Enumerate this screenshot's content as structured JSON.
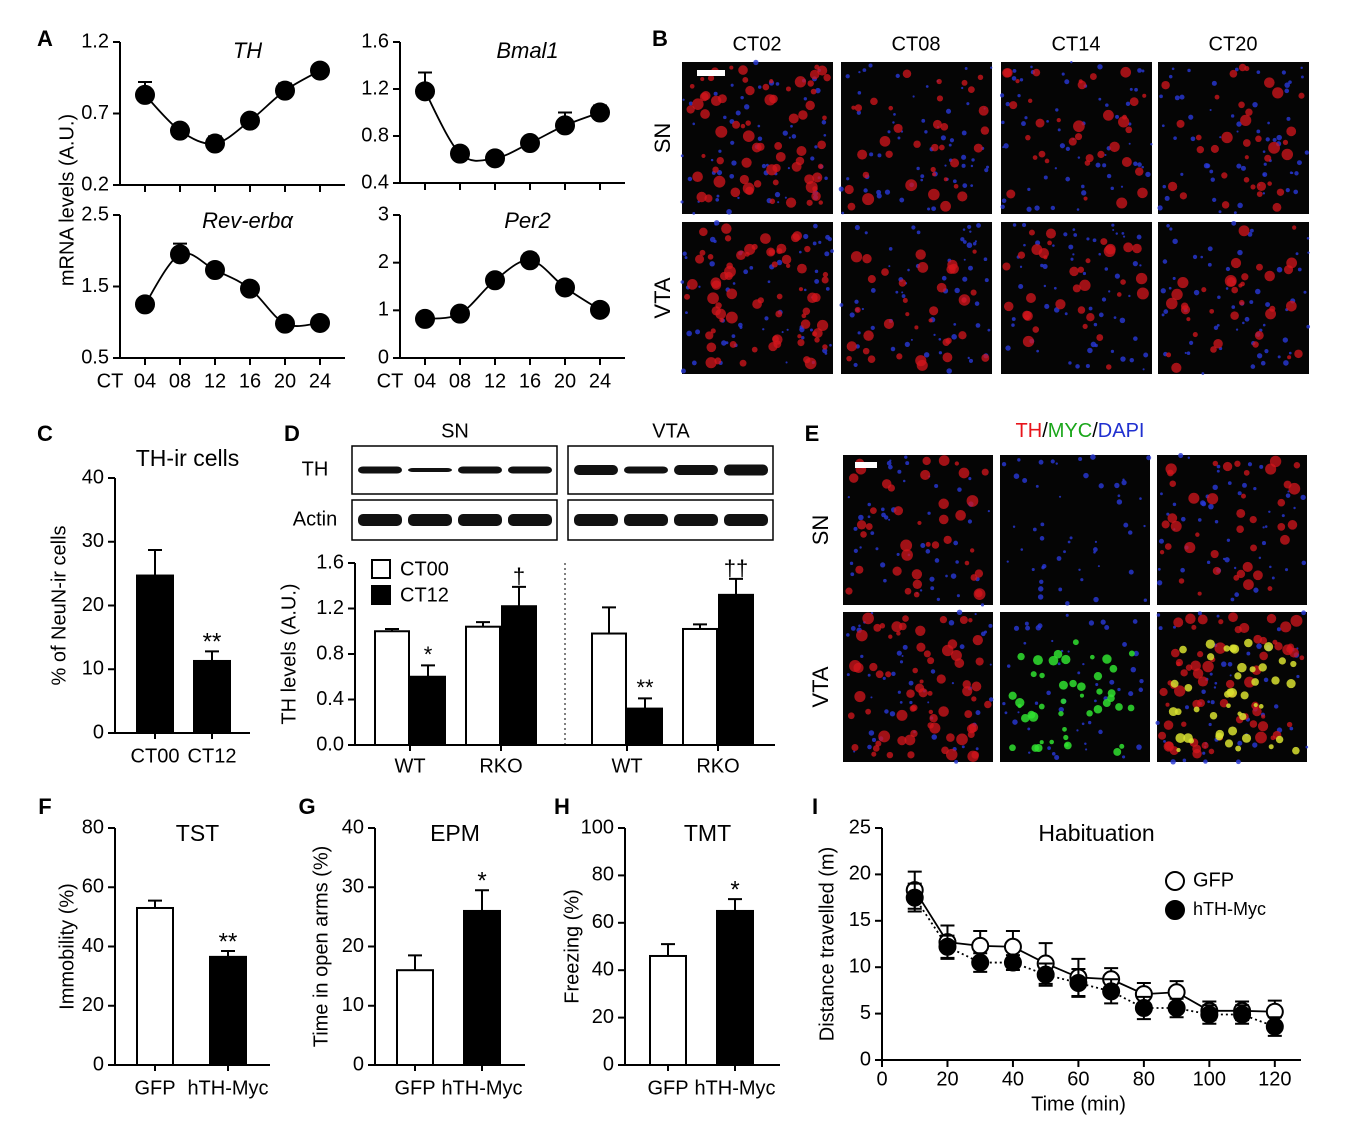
{
  "panel_labels": [
    "A",
    "B",
    "C",
    "D",
    "E",
    "F",
    "G",
    "H",
    "I"
  ],
  "panel_a": {
    "ylabel": "mRNA levels (A.U.)"
  },
  "micrographs_b": {
    "columns": [
      "CT02",
      "CT08",
      "CT14",
      "CT20"
    ],
    "rows": [
      "SN",
      "VTA"
    ]
  },
  "micrographs_e": {
    "channels": [
      {
        "name": "TH",
        "color": "#e8141b"
      },
      {
        "name": "MYC",
        "color": "#1aa61a"
      },
      {
        "name": "DAPI",
        "color": "#2030d0"
      }
    ],
    "separator": "/",
    "rows": [
      "SN",
      "VTA"
    ]
  },
  "western_d": {
    "groups": [
      "SN",
      "VTA"
    ],
    "rows": [
      "TH",
      "Actin"
    ]
  },
  "chart_data": [
    {
      "type": "line",
      "title": "TH",
      "ylim": [
        0.2,
        1.2
      ],
      "yticks": [
        0.2,
        0.7,
        1.2
      ],
      "series": [
        {
          "color": "#000",
          "values": [
            0.83,
            0.58,
            0.49,
            0.65,
            0.86,
            1.0
          ],
          "errors": [
            0.09,
            0.03,
            0.05,
            0.04,
            0.05,
            0.04
          ]
        }
      ]
    },
    {
      "type": "line",
      "title": "Bmal1",
      "ylim": [
        0.4,
        1.6
      ],
      "yticks": [
        0.4,
        0.8,
        1.2,
        1.6
      ],
      "series": [
        {
          "color": "#000",
          "values": [
            1.18,
            0.65,
            0.61,
            0.74,
            0.89,
            1.0
          ],
          "errors": [
            0.16,
            0.03,
            0.03,
            0.05,
            0.11,
            0.06
          ]
        }
      ]
    },
    {
      "type": "line",
      "title": "Rev-erbα",
      "xlabel": "CT",
      "categories": [
        "04",
        "08",
        "12",
        "16",
        "20",
        "24"
      ],
      "ylim": [
        0.5,
        2.5
      ],
      "yticks": [
        0.5,
        1.5,
        2.5
      ],
      "series": [
        {
          "color": "#000",
          "values": [
            1.25,
            1.95,
            1.73,
            1.47,
            0.98,
            0.99
          ],
          "errors": [
            0.05,
            0.15,
            0.09,
            0.05,
            0.04,
            0.04
          ]
        }
      ]
    },
    {
      "type": "line",
      "title": "Per2",
      "xlabel": "CT",
      "categories": [
        "04",
        "08",
        "12",
        "16",
        "20",
        "24"
      ],
      "ylim": [
        0,
        3
      ],
      "yticks": [
        0,
        1,
        2,
        3
      ],
      "series": [
        {
          "color": "#000",
          "values": [
            0.82,
            0.93,
            1.63,
            2.05,
            1.48,
            1.01
          ],
          "errors": [
            0.05,
            0.05,
            0.08,
            0.14,
            0.06,
            0.05
          ]
        }
      ]
    },
    {
      "type": "bar",
      "title": "TH-ir cells",
      "ylabel": "% of NeuN-ir cells",
      "categories": [
        "CT00",
        "CT12"
      ],
      "values": [
        24.7,
        11.3
      ],
      "errors": [
        4.0,
        1.5
      ],
      "colors": [
        "#000",
        "#000"
      ],
      "significance": [
        null,
        "**"
      ],
      "ylim": [
        0,
        40
      ],
      "yticks": [
        0,
        10,
        20,
        30,
        40
      ]
    },
    {
      "type": "grouped_bar",
      "ylabel": "TH levels (A.U.)",
      "categories": [
        "WT",
        "RKO",
        "WT",
        "RKO"
      ],
      "series": [
        {
          "name": "CT00",
          "color": "#fff",
          "values": [
            1.0,
            1.04,
            0.98,
            1.02
          ],
          "errors": [
            0.02,
            0.04,
            0.23,
            0.04
          ]
        },
        {
          "name": "CT12",
          "color": "#000",
          "values": [
            0.6,
            1.22,
            0.32,
            1.32
          ],
          "errors": [
            0.1,
            0.17,
            0.09,
            0.14
          ],
          "significance": [
            "*",
            "†",
            "**",
            "††"
          ]
        }
      ],
      "ylim": [
        0,
        1.6
      ],
      "yticks": [
        {
          "value": 0,
          "label": "0.0"
        },
        0.4,
        0.8,
        1.2,
        1.6
      ]
    },
    {
      "type": "bar",
      "title": "TST",
      "ylabel": "Immobility (%)",
      "categories": [
        "GFP",
        "hTH-Myc"
      ],
      "values": [
        53,
        36.5
      ],
      "errors": [
        2.5,
        2.0
      ],
      "colors": [
        "#fff",
        "#000"
      ],
      "significance": [
        null,
        "**"
      ],
      "ylim": [
        0,
        80
      ],
      "yticks": [
        0,
        20,
        40,
        60,
        80
      ]
    },
    {
      "type": "bar",
      "title": "EPM",
      "ylabel": "Time in open arms (%)",
      "categories": [
        "GFP",
        "hTH-Myc"
      ],
      "values": [
        16,
        26
      ],
      "errors": [
        2.5,
        3.5
      ],
      "colors": [
        "#fff",
        "#000"
      ],
      "significance": [
        null,
        "*"
      ],
      "ylim": [
        0,
        40
      ],
      "yticks": [
        0,
        10,
        20,
        30,
        40
      ]
    },
    {
      "type": "bar",
      "title": "TMT",
      "ylabel": "Freezing (%)",
      "categories": [
        "GFP",
        "hTH-Myc"
      ],
      "values": [
        46,
        65
      ],
      "errors": [
        5,
        5
      ],
      "colors": [
        "#fff",
        "#000"
      ],
      "significance": [
        null,
        "*"
      ],
      "ylim": [
        0,
        100
      ],
      "yticks": [
        0,
        20,
        40,
        60,
        80,
        100
      ]
    },
    {
      "type": "line",
      "title": "Habituation",
      "xlabel": "Time (min)",
      "ylabel": "Distance travelled (m)",
      "x": [
        10,
        20,
        30,
        40,
        50,
        60,
        70,
        80,
        90,
        100,
        110,
        120
      ],
      "xlim": [
        0,
        128
      ],
      "xticks": [
        0,
        20,
        40,
        60,
        80,
        100,
        120
      ],
      "ylim": [
        0,
        25
      ],
      "yticks": [
        0,
        5,
        10,
        15,
        20,
        25
      ],
      "legend": "upper right",
      "series": [
        {
          "name": "GFP",
          "color": "#fff",
          "dash": "solid",
          "values": [
            18.3,
            12.7,
            12.3,
            12.2,
            10.4,
            8.9,
            8.7,
            7.1,
            7.3,
            5.3,
            5.3,
            5.2
          ],
          "errors": [
            2.0,
            1.8,
            1.6,
            1.7,
            2.2,
            2.0,
            1.2,
            1.2,
            1.2,
            1.0,
            1.0,
            1.2
          ]
        },
        {
          "name": "hTH-Myc",
          "color": "#000",
          "dash": "dotted",
          "values": [
            17.5,
            12.2,
            10.5,
            10.5,
            9.2,
            8.3,
            7.4,
            5.6,
            5.6,
            4.9,
            4.9,
            3.6
          ],
          "errors": [
            1.5,
            1.2,
            1.0,
            0.8,
            1.2,
            1.5,
            1.3,
            1.2,
            1.0,
            1.0,
            1.0,
            1.0
          ]
        }
      ]
    }
  ]
}
